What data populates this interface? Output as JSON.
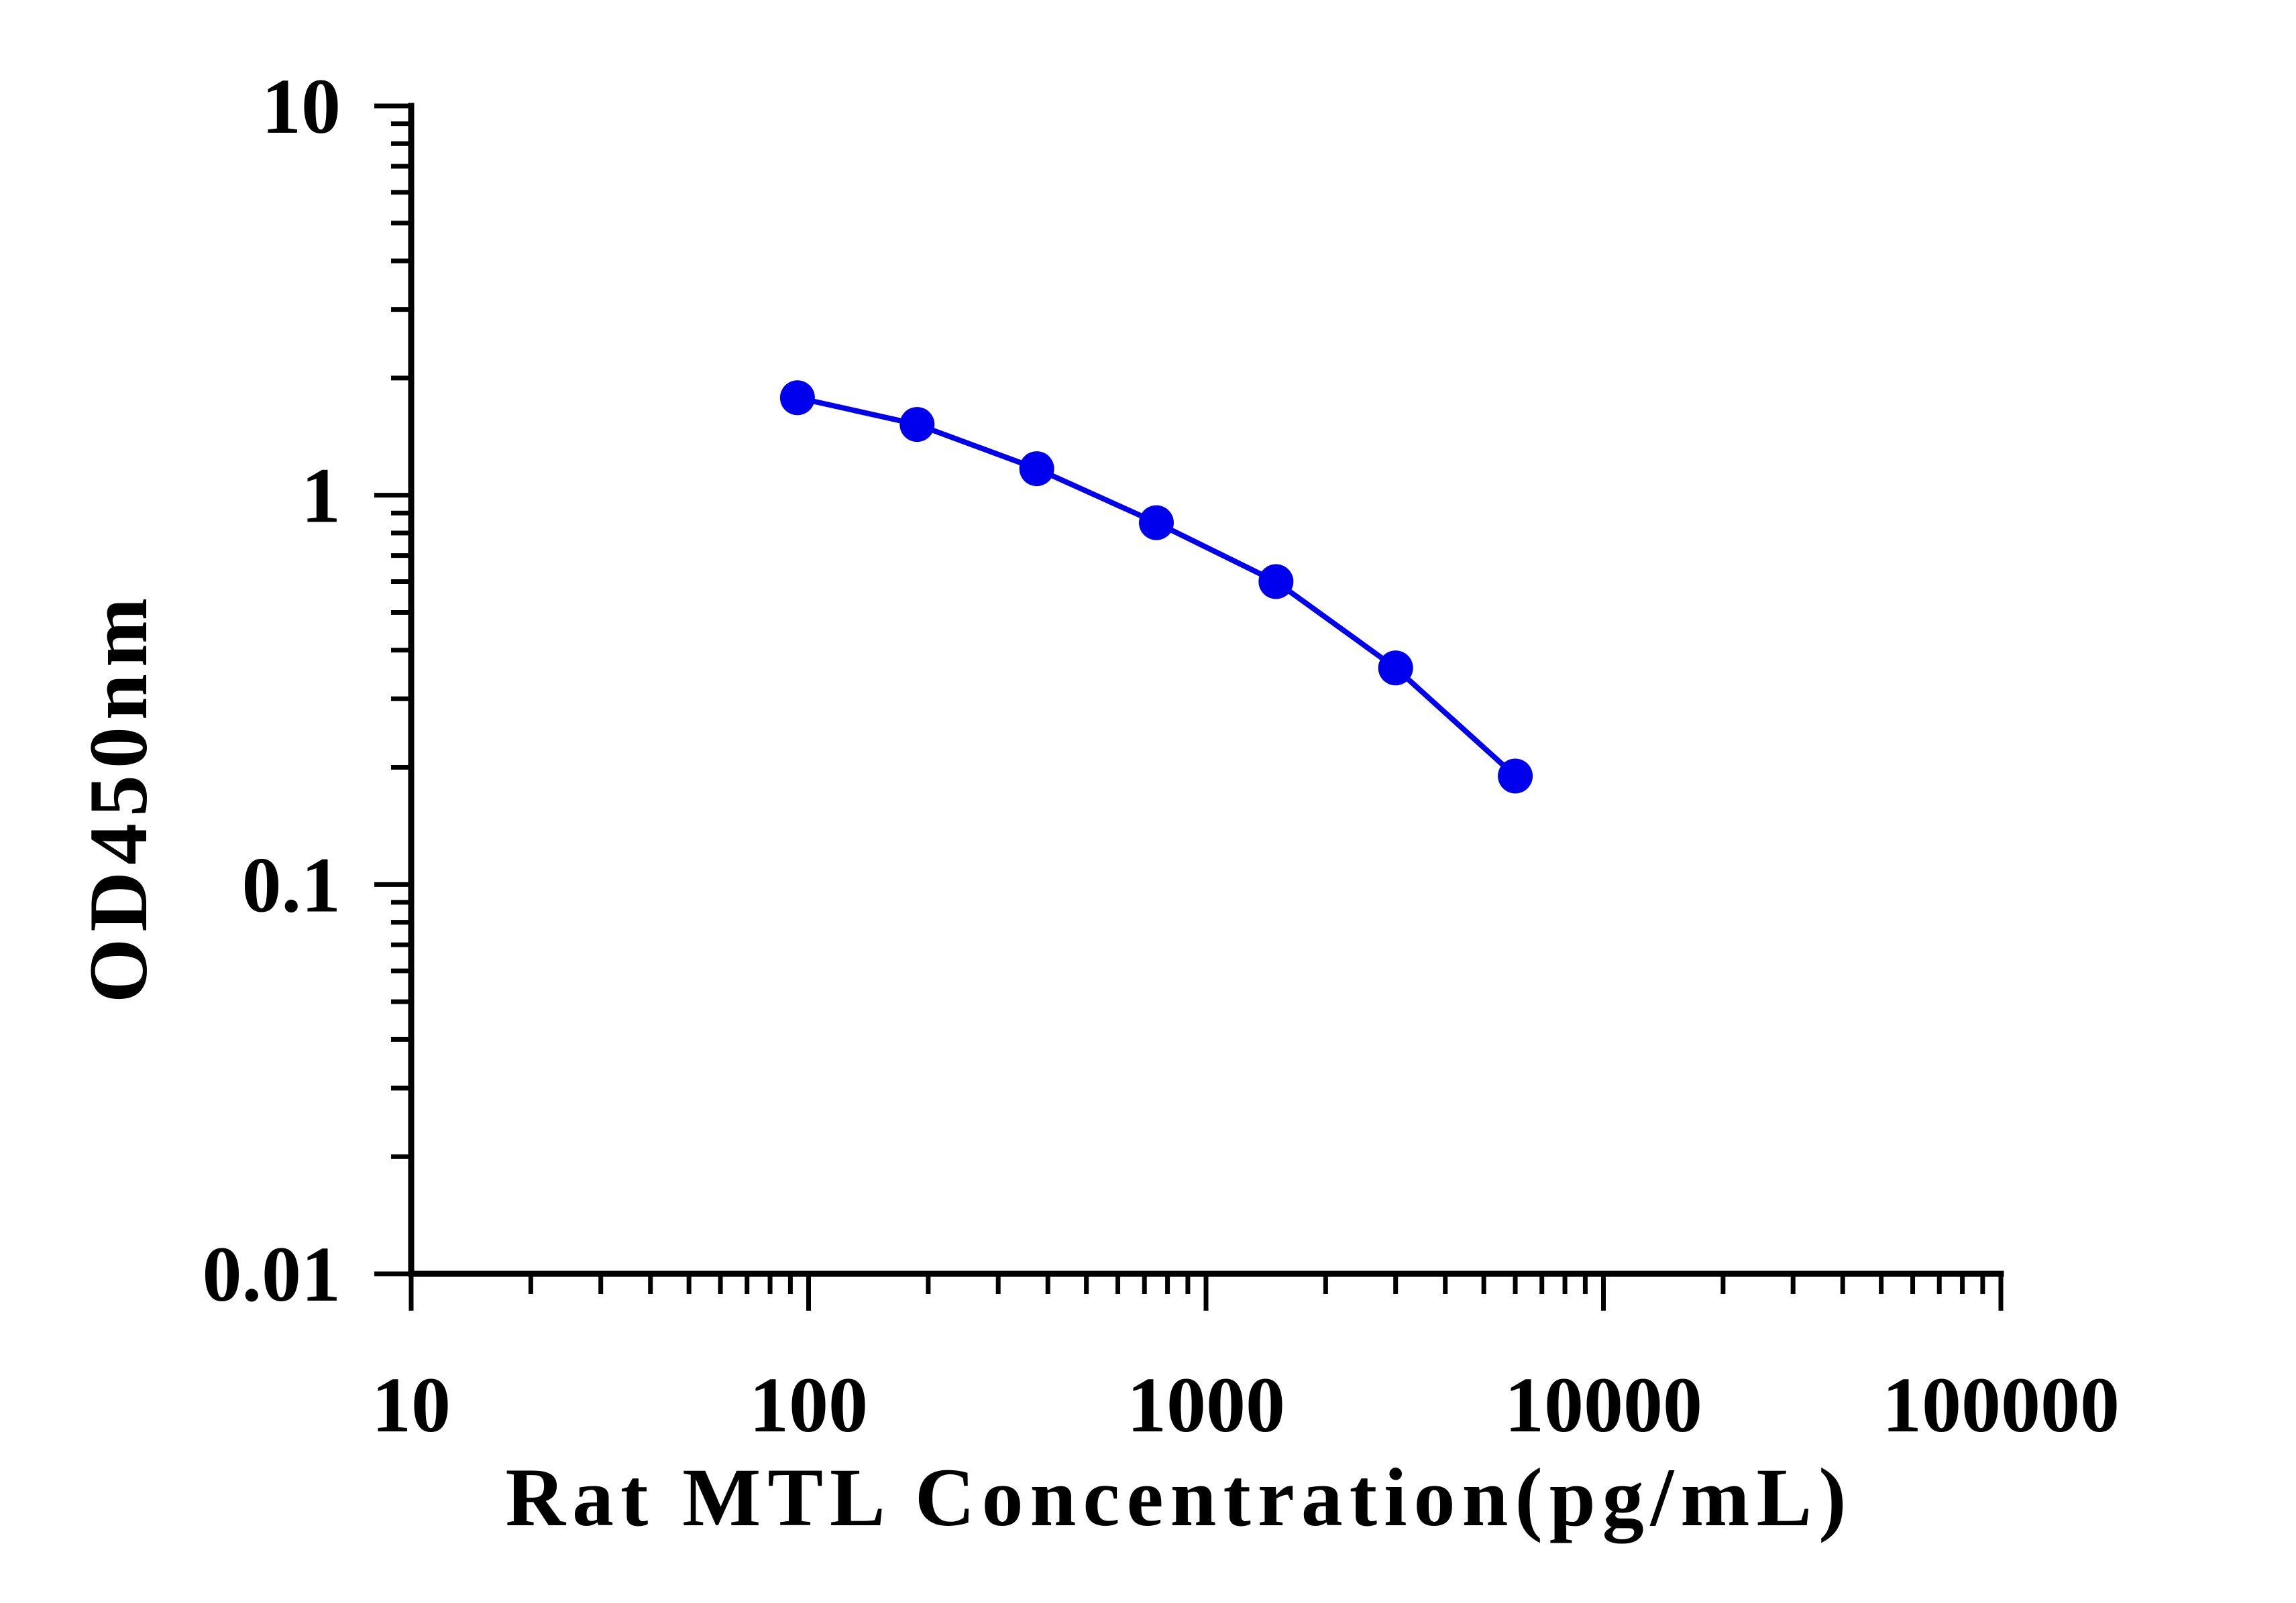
{
  "chart_data": {
    "type": "line",
    "xlabel": "Rat MTL Concentration(pg/mL)",
    "ylabel": "OD450nm",
    "xscale": "log",
    "yscale": "log",
    "xlim": [
      10,
      100000
    ],
    "ylim": [
      0.01,
      10
    ],
    "x_tick_labels": [
      "10",
      "100",
      "1000",
      "10000",
      "100000"
    ],
    "y_tick_labels": [
      "0.01",
      "0.1",
      "1",
      "10"
    ],
    "grid": false,
    "legend": "none",
    "series": [
      {
        "color": "#0000ee",
        "marker": "circle",
        "x": [
          93.75,
          187.5,
          375,
          750,
          1500,
          3000,
          6000
        ],
        "y": [
          1.78,
          1.52,
          1.17,
          0.85,
          0.6,
          0.36,
          0.19
        ]
      }
    ]
  }
}
